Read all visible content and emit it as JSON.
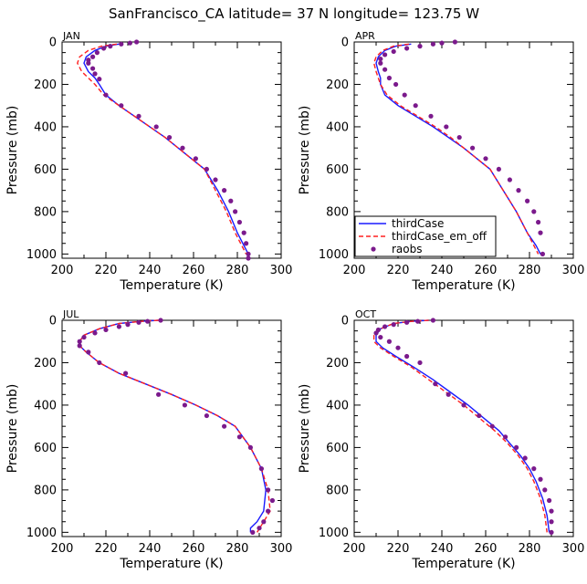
{
  "figure": {
    "title": "SanFrancisco_CA  latitude= 37 N longitude= 123.75 W"
  },
  "legend": {
    "entries": [
      "thirdCase",
      "thirdCase_em_off",
      "raobs"
    ]
  },
  "colors": {
    "thirdCase": "#1a1aff",
    "thirdCase_em_off": "#ff2020",
    "raobs": "#7b1a8c"
  },
  "chart_data": [
    {
      "type": "line",
      "panel_label": "JAN",
      "xlabel": "Temperature (K)",
      "ylabel": "Pressure (mb)",
      "xlim": [
        200,
        300
      ],
      "ylim": [
        1020,
        0
      ],
      "xticks": [
        "200",
        "220",
        "240",
        "260",
        "280",
        "300"
      ],
      "yticks": [
        "0",
        "200",
        "400",
        "600",
        "800",
        "1000"
      ],
      "series": [
        {
          "name": "thirdCase",
          "x": [
            226,
            220,
            215,
            211,
            210,
            212,
            215,
            217,
            220,
            226,
            233,
            240,
            247,
            253,
            259,
            265,
            271,
            276,
            280,
            283,
            285
          ],
          "y": [
            10,
            20,
            40,
            70,
            100,
            140,
            170,
            200,
            250,
            300,
            350,
            400,
            450,
            500,
            550,
            600,
            700,
            800,
            900,
            960,
            1000
          ]
        },
        {
          "name": "thirdCase_em_off",
          "x": [
            225,
            218,
            212,
            208,
            207,
            209,
            212,
            215,
            219,
            226,
            233,
            240,
            247,
            253,
            259,
            265,
            270,
            275,
            279,
            282,
            284
          ],
          "y": [
            10,
            20,
            40,
            70,
            100,
            140,
            170,
            200,
            250,
            300,
            350,
            400,
            450,
            500,
            550,
            600,
            700,
            800,
            900,
            960,
            1000
          ]
        },
        {
          "name": "raobs",
          "x": [
            234,
            231,
            227,
            222,
            219,
            216,
            214,
            212,
            212,
            214,
            215,
            217,
            220,
            227,
            235,
            243,
            249,
            255,
            261,
            266,
            270,
            274,
            277,
            279,
            281,
            283,
            284,
            285,
            285
          ],
          "y": [
            0,
            5,
            10,
            20,
            30,
            50,
            70,
            85,
            100,
            125,
            150,
            175,
            250,
            300,
            350,
            400,
            450,
            500,
            550,
            600,
            650,
            700,
            750,
            800,
            850,
            900,
            950,
            1000,
            1020
          ]
        }
      ]
    },
    {
      "type": "line",
      "panel_label": "APR",
      "xlabel": "Temperature (K)",
      "ylabel": "Pressure (mb)",
      "xlim": [
        200,
        300
      ],
      "ylim": [
        1020,
        0
      ],
      "xticks": [
        "200",
        "220",
        "240",
        "260",
        "280",
        "300"
      ],
      "yticks": [
        "0",
        "200",
        "400",
        "600",
        "800",
        "1000"
      ],
      "series": [
        {
          "name": "thirdCase",
          "x": [
            226,
            219,
            214,
            211,
            210,
            211,
            212,
            212,
            214,
            220,
            228,
            236,
            243,
            250,
            256,
            262,
            268,
            274,
            279,
            283,
            285
          ],
          "y": [
            10,
            20,
            40,
            70,
            100,
            140,
            170,
            200,
            250,
            300,
            350,
            400,
            450,
            500,
            550,
            600,
            700,
            800,
            900,
            960,
            1000
          ]
        },
        {
          "name": "thirdCase_em_off",
          "x": [
            225,
            218,
            213,
            210,
            209,
            210,
            211,
            212,
            215,
            221,
            229,
            237,
            244,
            250,
            256,
            262,
            268,
            274,
            279,
            282,
            284
          ],
          "y": [
            10,
            20,
            40,
            70,
            100,
            140,
            170,
            200,
            250,
            300,
            350,
            400,
            450,
            500,
            550,
            600,
            700,
            800,
            900,
            960,
            1000
          ]
        },
        {
          "name": "raobs",
          "x": [
            246,
            240,
            236,
            230,
            224,
            218,
            214,
            212,
            212,
            214,
            216,
            219,
            223,
            228,
            235,
            242,
            248,
            254,
            260,
            266,
            271,
            275,
            279,
            282,
            284,
            285,
            286
          ],
          "y": [
            0,
            5,
            10,
            20,
            30,
            45,
            60,
            80,
            100,
            130,
            170,
            200,
            250,
            300,
            350,
            400,
            450,
            500,
            550,
            600,
            650,
            700,
            750,
            800,
            850,
            900,
            1000
          ]
        }
      ]
    },
    {
      "type": "line",
      "panel_label": "JUL",
      "xlabel": "Temperature (K)",
      "ylabel": "Pressure (mb)",
      "xlim": [
        200,
        300
      ],
      "ylim": [
        1020,
        0
      ],
      "xticks": [
        "200",
        "220",
        "240",
        "260",
        "280",
        "300"
      ],
      "yticks": [
        "0",
        "200",
        "400",
        "600",
        "800",
        "1000"
      ],
      "series": [
        {
          "name": "thirdCase",
          "x": [
            244,
            236,
            226,
            217,
            210,
            208,
            208,
            211,
            217,
            226,
            238,
            250,
            261,
            271,
            279,
            286,
            291,
            293,
            292,
            289,
            286,
            286
          ],
          "y": [
            0,
            5,
            15,
            40,
            70,
            100,
            120,
            150,
            200,
            250,
            300,
            350,
            400,
            450,
            500,
            600,
            700,
            800,
            900,
            950,
            980,
            1000
          ]
        },
        {
          "name": "thirdCase_em_off",
          "x": [
            244,
            236,
            226,
            217,
            210,
            208,
            208,
            211,
            217,
            226,
            238,
            250,
            261,
            271,
            279,
            286,
            291,
            294,
            295,
            292,
            289
          ],
          "y": [
            0,
            5,
            15,
            40,
            70,
            100,
            120,
            150,
            200,
            250,
            300,
            350,
            400,
            450,
            500,
            600,
            700,
            800,
            900,
            950,
            1000
          ]
        },
        {
          "name": "raobs",
          "x": [
            245,
            239,
            235,
            230,
            226,
            220,
            215,
            210,
            208,
            208,
            212,
            217,
            229,
            244,
            256,
            266,
            274,
            281,
            286,
            291,
            294,
            296,
            294,
            292,
            290,
            287
          ],
          "y": [
            0,
            5,
            10,
            20,
            30,
            45,
            60,
            80,
            100,
            120,
            150,
            200,
            250,
            350,
            400,
            450,
            500,
            550,
            600,
            700,
            800,
            850,
            900,
            950,
            980,
            1000
          ]
        }
      ]
    },
    {
      "type": "line",
      "panel_label": "OCT",
      "xlabel": "Temperature (K)",
      "ylabel": "Pressure (mb)",
      "xlim": [
        200,
        300
      ],
      "ylim": [
        1020,
        0
      ],
      "xticks": [
        "200",
        "220",
        "240",
        "260",
        "280",
        "300"
      ],
      "yticks": [
        "0",
        "200",
        "400",
        "600",
        "800",
        "1000"
      ],
      "series": [
        {
          "name": "thirdCase",
          "x": [
            234,
            226,
            218,
            212,
            210,
            210,
            213,
            219,
            227,
            236,
            244,
            252,
            259,
            266,
            271,
            276,
            280,
            283,
            286,
            288,
            289
          ],
          "y": [
            0,
            5,
            15,
            40,
            70,
            100,
            130,
            170,
            220,
            280,
            340,
            400,
            460,
            520,
            580,
            640,
            700,
            760,
            840,
            920,
            1000
          ]
        },
        {
          "name": "thirdCase_em_off",
          "x": [
            234,
            226,
            218,
            212,
            209,
            209,
            212,
            218,
            226,
            234,
            242,
            250,
            257,
            264,
            270,
            275,
            279,
            282,
            285,
            287,
            288
          ],
          "y": [
            0,
            5,
            15,
            40,
            70,
            100,
            130,
            170,
            220,
            280,
            340,
            400,
            460,
            520,
            580,
            640,
            700,
            760,
            840,
            920,
            1000
          ]
        },
        {
          "name": "raobs",
          "x": [
            236,
            229,
            224,
            218,
            214,
            211,
            210,
            212,
            216,
            220,
            224,
            230,
            237,
            243,
            250,
            257,
            263,
            269,
            274,
            278,
            282,
            285,
            287,
            289,
            290,
            290,
            290
          ],
          "y": [
            0,
            5,
            10,
            20,
            30,
            45,
            60,
            80,
            100,
            130,
            170,
            200,
            300,
            350,
            400,
            450,
            500,
            550,
            600,
            650,
            700,
            750,
            800,
            850,
            900,
            950,
            1000
          ]
        }
      ]
    }
  ]
}
